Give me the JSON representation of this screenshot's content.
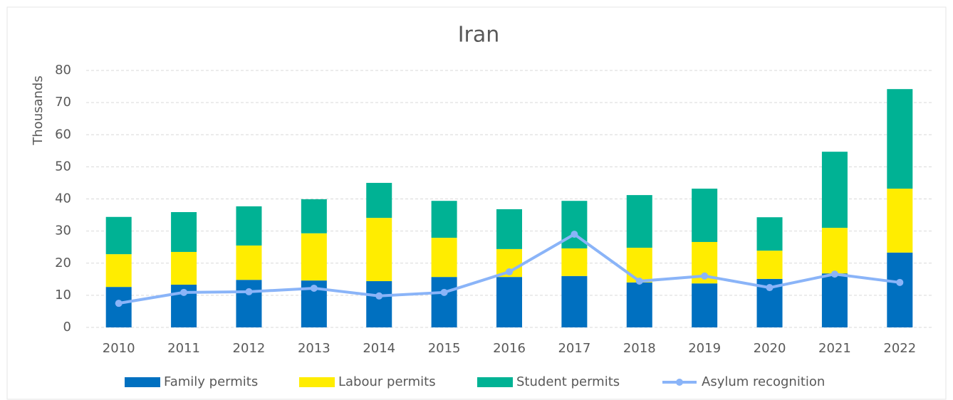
{
  "chart_data": {
    "type": "bar",
    "stacked": true,
    "title": "Iran",
    "y_label": "Thousands",
    "categories": [
      "2010",
      "2011",
      "2012",
      "2013",
      "2014",
      "2015",
      "2016",
      "2017",
      "2018",
      "2019",
      "2020",
      "2021",
      "2022"
    ],
    "series": [
      {
        "name": "Family permits",
        "color": "#0070c0",
        "values": [
          12.6,
          13.3,
          14.8,
          14.6,
          14.4,
          15.7,
          15.7,
          16.0,
          14.0,
          13.7,
          15.1,
          16.8,
          23.3
        ]
      },
      {
        "name": "Labour permits",
        "color": "#ffed00",
        "values": [
          10.2,
          10.2,
          10.7,
          14.7,
          19.7,
          12.2,
          8.7,
          8.6,
          10.8,
          12.9,
          8.8,
          14.2,
          19.9
        ]
      },
      {
        "name": "Student permits",
        "color": "#00b294",
        "values": [
          11.6,
          12.4,
          12.2,
          10.6,
          10.9,
          11.5,
          12.4,
          14.8,
          16.4,
          16.6,
          10.4,
          23.7,
          31.0
        ]
      },
      {
        "name": "Asylum recognition",
        "type": "line",
        "color": "#8ab4f8",
        "values": [
          7.5,
          10.9,
          11.1,
          12.2,
          9.8,
          10.9,
          17.3,
          29.0,
          14.4,
          16.0,
          12.4,
          16.6,
          14.0
        ]
      }
    ],
    "ylim": [
      0,
      80
    ],
    "yticks": [
      0,
      10,
      20,
      30,
      40,
      50,
      60,
      70,
      80
    ],
    "grid": true,
    "legend": "bottom"
  }
}
